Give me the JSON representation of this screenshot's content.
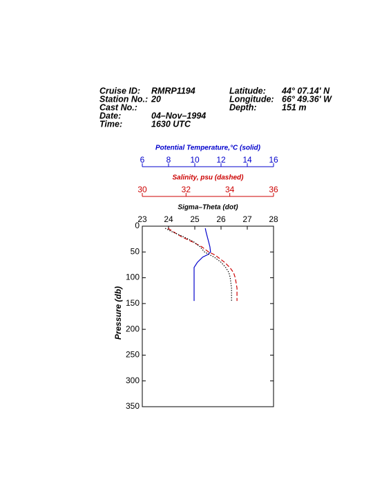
{
  "header": {
    "left": [
      {
        "label": "Cruise ID:",
        "value": "RMRP1194"
      },
      {
        "label": "Station No.:",
        "value": "20"
      },
      {
        "label": "Cast No.:"
      },
      {
        "label": "Date:",
        "value": "04–Nov–1994"
      },
      {
        "label": "Time:",
        "value": "1630 UTC"
      }
    ],
    "right": [
      {
        "label": "Latitude:",
        "value": "44° 07.14' N"
      },
      {
        "label": "Longitude:",
        "value": "66° 49.36' W"
      },
      {
        "label": "Depth:",
        "value": "151 m"
      }
    ]
  },
  "chart_data": {
    "type": "profile",
    "y_label": "Pressure (db)",
    "ylim": [
      0,
      350
    ],
    "yticks": [
      0,
      50,
      100,
      150,
      200,
      250,
      300,
      350
    ],
    "y_inverted": true,
    "x_axes": [
      {
        "title": "Potential Temperature,°C (solid)",
        "color": "#0000cc",
        "xlim": [
          6,
          16
        ],
        "xticks": [
          6,
          8,
          10,
          12,
          14,
          16
        ]
      },
      {
        "title": "Salinity, psu  (dashed)",
        "color": "#cc0000",
        "xlim": [
          30,
          36
        ],
        "xticks": [
          30,
          32,
          34,
          36
        ]
      },
      {
        "title": "Sigma–Theta (dot)",
        "color": "#000000",
        "xlim": [
          23,
          28
        ],
        "xticks": [
          23,
          24,
          25,
          26,
          27,
          28
        ]
      }
    ],
    "pressure": [
      4,
      10,
      20,
      30,
      40,
      50,
      55,
      60,
      70,
      80,
      90,
      100,
      120,
      145
    ],
    "series": [
      {
        "name": "Potential Temperature",
        "axis": 0,
        "color": "#0000cc",
        "style": "solid",
        "values": [
          10.8,
          10.85,
          10.95,
          11.05,
          11.15,
          11.2,
          11.0,
          10.6,
          10.2,
          9.95,
          9.95,
          9.95,
          9.95,
          9.95
        ]
      },
      {
        "name": "Salinity",
        "axis": 1,
        "color": "#cc0000",
        "style": "dashed",
        "values": [
          31.17,
          31.39,
          31.77,
          32.27,
          32.72,
          33.03,
          33.28,
          33.45,
          33.76,
          34.0,
          34.17,
          34.25,
          34.33,
          34.33
        ]
      },
      {
        "name": "Sigma-Theta",
        "axis": 2,
        "color": "#000000",
        "style": "dotted",
        "values": [
          23.87,
          24.1,
          24.55,
          24.95,
          25.2,
          25.37,
          25.55,
          25.74,
          26.0,
          26.18,
          26.3,
          26.35,
          26.4,
          26.4
        ]
      }
    ]
  }
}
